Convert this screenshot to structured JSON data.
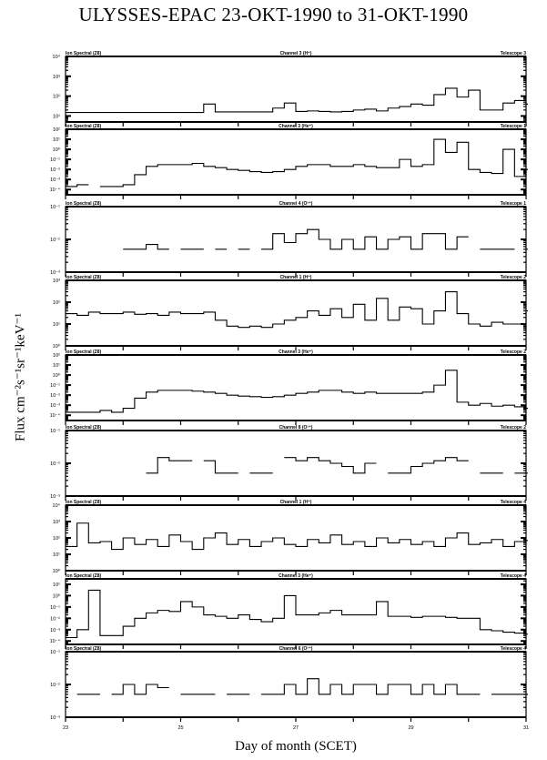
{
  "chart_data": {
    "type": "line",
    "title": "ULYSSES-EPAC  23-OKT-1990 to 31-OKT-1990",
    "xlabel": "Day of month (SCET)",
    "ylabel": "Flux cm⁻²s⁻¹sr⁻¹keV⁻¹",
    "xlim": [
      23,
      31
    ],
    "x_ticks": [
      {
        "value": 23,
        "label": "23"
      },
      {
        "value": 25,
        "label": "25"
      },
      {
        "value": 27,
        "label": "27"
      },
      {
        "value": 29,
        "label": "29"
      },
      {
        "value": 31,
        "label": "31"
      }
    ],
    "y_scale": "log",
    "step": true,
    "line_color": "#000000",
    "x": [
      23.0,
      23.2,
      23.4,
      23.6,
      23.8,
      24.0,
      24.2,
      24.4,
      24.6,
      24.8,
      25.0,
      25.2,
      25.4,
      25.6,
      25.8,
      26.0,
      26.2,
      26.4,
      26.6,
      26.8,
      27.0,
      27.2,
      27.4,
      27.6,
      27.8,
      28.0,
      28.2,
      28.4,
      28.6,
      28.8,
      29.0,
      29.2,
      29.4,
      29.6,
      29.8,
      30.0,
      30.2,
      30.4,
      30.6,
      30.8,
      31.0
    ],
    "panels": [
      {
        "left_label": "Ion Spectral (Z8)",
        "channel": "Channel 3 (H⁺)",
        "telescope": "Telescope 3",
        "ylim": [
          5,
          10000
        ],
        "yticks": [
          {
            "value": 10000,
            "label": "10⁴"
          },
          {
            "value": 1000,
            "label": "10³"
          },
          {
            "value": 100,
            "label": "10²"
          },
          {
            "value": 10,
            "label": "10¹"
          }
        ],
        "values": [
          15,
          15,
          15,
          15,
          15,
          15,
          15,
          15,
          15,
          15,
          15,
          15,
          40,
          16,
          16,
          16,
          16,
          16,
          25,
          45,
          17,
          18,
          17,
          16,
          17,
          20,
          22,
          18,
          25,
          30,
          40,
          35,
          120,
          250,
          90,
          200,
          20,
          20,
          45,
          60,
          40
        ]
      },
      {
        "left_label": "Ion Spectral (Z8)",
        "channel": "Channel 3 (He⁺)",
        "telescope": "Telescope 1",
        "ylim": [
          3e-05,
          100
        ],
        "yticks": [
          {
            "value": 100,
            "label": "10²"
          },
          {
            "value": 10,
            "label": "10¹"
          },
          {
            "value": 1,
            "label": "10⁰"
          },
          {
            "value": 0.1,
            "label": "10⁻¹"
          },
          {
            "value": 0.01,
            "label": "10⁻²"
          },
          {
            "value": 0.001,
            "label": "10⁻³"
          },
          {
            "value": 0.0001,
            "label": "10⁻⁴"
          }
        ],
        "values": [
          0.0002,
          0.0003,
          null,
          0.0002,
          0.0002,
          0.0003,
          0.003,
          0.02,
          0.03,
          0.03,
          0.03,
          0.04,
          0.02,
          0.015,
          0.01,
          0.008,
          0.006,
          0.005,
          0.006,
          0.01,
          0.02,
          0.03,
          0.03,
          0.02,
          0.02,
          0.03,
          0.02,
          0.015,
          0.015,
          0.1,
          0.02,
          0.03,
          10,
          0.5,
          5,
          0.01,
          0.005,
          0.004,
          1,
          0.002,
          0.01
        ]
      },
      {
        "left_label": "Ion Spectral (Z8)",
        "channel": "Channel 4 (O¹⁺)",
        "telescope": "Telescope 1",
        "ylim": [
          0.001,
          0.1
        ],
        "yticks": [
          {
            "value": 0.1,
            "label": "10⁻¹"
          },
          {
            "value": 0.01,
            "label": "10⁻²"
          },
          {
            "value": 0.001,
            "label": "10⁻³"
          }
        ],
        "values": [
          null,
          null,
          null,
          null,
          null,
          0.005,
          0.005,
          0.007,
          0.005,
          null,
          0.005,
          0.005,
          null,
          0.005,
          null,
          0.005,
          null,
          0.005,
          0.015,
          0.008,
          0.015,
          0.02,
          0.01,
          0.005,
          0.01,
          0.005,
          0.012,
          0.005,
          0.01,
          0.012,
          0.005,
          0.015,
          0.015,
          0.005,
          0.012,
          null,
          0.005,
          0.005,
          0.005,
          null,
          0.005
        ]
      },
      {
        "left_label": "Ion Spectral (Z8)",
        "channel": "Channel 1 (H⁺)",
        "telescope": "Telescope 2",
        "ylim": [
          1,
          1000
        ],
        "yticks": [
          {
            "value": 1000,
            "label": "10³"
          },
          {
            "value": 100,
            "label": "10²"
          },
          {
            "value": 10,
            "label": "10¹"
          },
          {
            "value": 1,
            "label": "10⁰"
          }
        ],
        "values": [
          30,
          25,
          35,
          30,
          30,
          35,
          28,
          30,
          25,
          35,
          30,
          30,
          35,
          15,
          8,
          7,
          8,
          7,
          10,
          15,
          20,
          40,
          25,
          50,
          20,
          80,
          15,
          150,
          15,
          60,
          50,
          10,
          40,
          300,
          30,
          10,
          8,
          12,
          10,
          10,
          40
        ]
      },
      {
        "left_label": "Ion Spectral (Z8)",
        "channel": "Channel 3 (He⁺)",
        "telescope": "Telescope 2",
        "ylim": [
          3e-05,
          100
        ],
        "yticks": [
          {
            "value": 100,
            "label": "10²"
          },
          {
            "value": 10,
            "label": "10¹"
          },
          {
            "value": 1,
            "label": "10⁰"
          },
          {
            "value": 0.1,
            "label": "10⁻¹"
          },
          {
            "value": 0.01,
            "label": "10⁻²"
          },
          {
            "value": 0.001,
            "label": "10⁻³"
          },
          {
            "value": 0.0001,
            "label": "10⁻⁴"
          }
        ],
        "values": [
          0.0002,
          0.0002,
          0.0002,
          0.0003,
          0.0002,
          0.0005,
          0.005,
          0.02,
          0.03,
          0.03,
          0.03,
          0.025,
          0.02,
          0.015,
          0.01,
          0.008,
          0.007,
          0.006,
          0.007,
          0.01,
          0.015,
          0.02,
          0.03,
          0.03,
          0.02,
          0.015,
          0.02,
          0.015,
          0.015,
          0.015,
          0.015,
          0.02,
          0.1,
          3,
          0.002,
          0.001,
          0.0015,
          0.0008,
          0.001,
          0.0007,
          0.0005
        ]
      },
      {
        "left_label": "Ion Spectral (Z8)",
        "channel": "Channel 8 (O¹⁺)",
        "telescope": "Telescope 2",
        "ylim": [
          0.001,
          0.1
        ],
        "yticks": [
          {
            "value": 0.1,
            "label": "10⁻¹"
          },
          {
            "value": 0.01,
            "label": "10⁻²"
          },
          {
            "value": 0.001,
            "label": "10⁻³"
          }
        ],
        "values": [
          null,
          null,
          null,
          null,
          null,
          null,
          null,
          0.005,
          0.015,
          0.012,
          0.012,
          null,
          0.012,
          0.005,
          0.005,
          null,
          0.005,
          0.005,
          null,
          0.015,
          0.012,
          0.015,
          0.012,
          0.01,
          0.008,
          0.005,
          0.01,
          null,
          0.005,
          0.005,
          0.008,
          0.01,
          0.012,
          0.015,
          0.012,
          null,
          0.005,
          0.005,
          null,
          0.005,
          0.005
        ]
      },
      {
        "left_label": "Ion Spectral (Z8)",
        "channel": "Channel 1 (H⁺)",
        "telescope": "Telescope 4",
        "ylim": [
          1,
          10000
        ],
        "yticks": [
          {
            "value": 10000,
            "label": "10⁴"
          },
          {
            "value": 1000,
            "label": "10³"
          },
          {
            "value": 100,
            "label": "10²"
          },
          {
            "value": 10,
            "label": "10¹"
          },
          {
            "value": 1,
            "label": "10⁰"
          }
        ],
        "values": [
          30,
          800,
          50,
          60,
          20,
          100,
          40,
          80,
          30,
          150,
          60,
          20,
          100,
          200,
          40,
          80,
          30,
          60,
          100,
          40,
          30,
          80,
          50,
          150,
          40,
          60,
          30,
          100,
          50,
          80,
          40,
          60,
          30,
          100,
          200,
          40,
          50,
          80,
          30,
          60,
          70
        ]
      },
      {
        "left_label": "Ion Spectral (Z8)",
        "channel": "Channel 3 (He⁺)",
        "telescope": "Telescope 4",
        "ylim": [
          5e-05,
          30
        ],
        "yticks": [
          {
            "value": 10,
            "label": "10¹"
          },
          {
            "value": 1,
            "label": "10⁰"
          },
          {
            "value": 0.1,
            "label": "10⁻¹"
          },
          {
            "value": 0.01,
            "label": "10⁻²"
          },
          {
            "value": 0.001,
            "label": "10⁻³"
          },
          {
            "value": 0.0001,
            "label": "10⁻⁴"
          }
        ],
        "values": [
          0.0002,
          0.001,
          3,
          0.0003,
          0.0003,
          0.002,
          0.01,
          0.03,
          0.05,
          0.04,
          0.3,
          0.1,
          0.02,
          0.015,
          0.01,
          0.02,
          0.008,
          0.005,
          0.01,
          1,
          0.02,
          0.02,
          0.03,
          0.05,
          0.02,
          0.02,
          0.02,
          0.3,
          0.015,
          0.015,
          0.012,
          0.015,
          0.015,
          0.012,
          0.01,
          0.01,
          0.001,
          0.0008,
          0.0006,
          0.0005,
          0.0004
        ]
      },
      {
        "left_label": "Ion Spectral (Z8)",
        "channel": "Channel 6 (O¹⁺)",
        "telescope": "Telescope 4",
        "ylim": [
          0.001,
          0.1
        ],
        "yticks": [
          {
            "value": 0.1,
            "label": "10⁻¹"
          },
          {
            "value": 0.01,
            "label": "10⁻²"
          },
          {
            "value": 0.001,
            "label": "10⁻³"
          }
        ],
        "values": [
          null,
          0.005,
          0.005,
          null,
          0.005,
          0.01,
          0.005,
          0.01,
          0.008,
          null,
          0.005,
          0.005,
          0.005,
          null,
          0.005,
          0.005,
          null,
          0.005,
          0.005,
          0.01,
          0.005,
          0.015,
          0.005,
          0.01,
          0.005,
          0.01,
          0.01,
          0.005,
          0.01,
          0.01,
          0.005,
          0.01,
          0.005,
          0.01,
          0.005,
          0.005,
          null,
          0.005,
          0.005,
          0.005,
          0.005
        ]
      }
    ]
  }
}
